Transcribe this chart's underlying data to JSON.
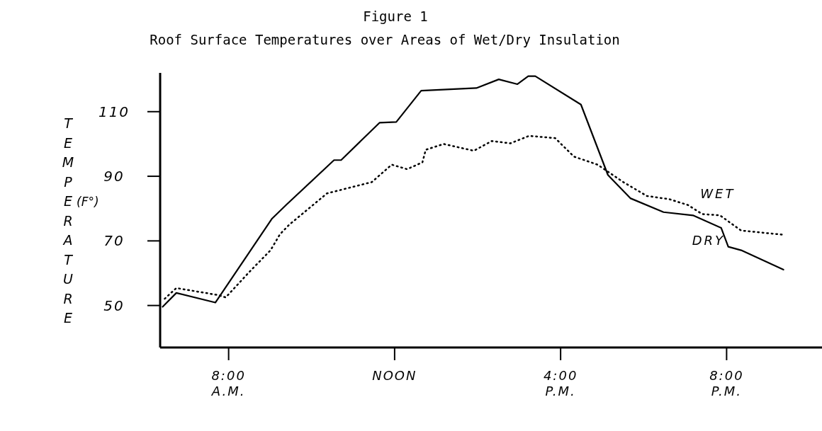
{
  "chart_data": {
    "type": "line",
    "title": "Figure 1",
    "subtitle": "Roof Surface Temperatures over Areas of Wet/Dry Insulation",
    "ylabel": "TEMPERATURE",
    "annotations": [
      "(F°)"
    ],
    "xlim": [
      6.35,
      22.35
    ],
    "xticks": [
      {
        "value": 8,
        "label": "8:00\nA.M."
      },
      {
        "value": 12,
        "label": "NOON"
      },
      {
        "value": 16,
        "label": "4:00\nP.M."
      },
      {
        "value": 20,
        "label": "8:00\nP.M."
      }
    ],
    "ylim": [
      37,
      122
    ],
    "yticks": [
      50,
      70,
      90,
      110
    ],
    "grid": false,
    "series": [
      {
        "name": "WET",
        "color": "#000000",
        "line_style": "dotted",
        "x": [
          6.46,
          6.74,
          7.76,
          7.93,
          8.5,
          9.01,
          9.24,
          9.46,
          10.37,
          11.45,
          11.93,
          12.3,
          12.67,
          12.75,
          13.18,
          13.91,
          14.34,
          14.79,
          15.24,
          15.87,
          16.32,
          16.89,
          17.51,
          18.08,
          18.62,
          19.07,
          19.41,
          19.84,
          20.35,
          21.37
        ],
        "values": [
          52.1,
          55.4,
          53.2,
          52.5,
          60.4,
          67.1,
          72.1,
          75,
          84.7,
          88.2,
          93.6,
          92.2,
          94.3,
          98.2,
          100,
          97.9,
          100.9,
          100.2,
          102.5,
          101.8,
          96.1,
          93.6,
          88.2,
          83.9,
          82.9,
          81.1,
          78.3,
          77.9,
          73.2,
          71.9
        ]
      },
      {
        "name": "DRY",
        "color": "#000000",
        "line_style": "solid",
        "x": [
          6.41,
          6.74,
          7.68,
          9.04,
          9.41,
          10.54,
          10.71,
          11.64,
          12.04,
          12.64,
          13.97,
          14.51,
          14.96,
          15.22,
          15.39,
          16.49,
          17.14,
          17.68,
          18.48,
          19.19,
          19.87,
          20.04,
          20.35,
          21.37
        ],
        "values": [
          49.6,
          53.9,
          50.9,
          76.8,
          81.4,
          95,
          95,
          106.6,
          106.8,
          116.5,
          117.3,
          120,
          118.5,
          121,
          121,
          112.2,
          90.4,
          83.2,
          78.9,
          77.9,
          74,
          68.2,
          67.1,
          61.1
        ]
      }
    ]
  }
}
